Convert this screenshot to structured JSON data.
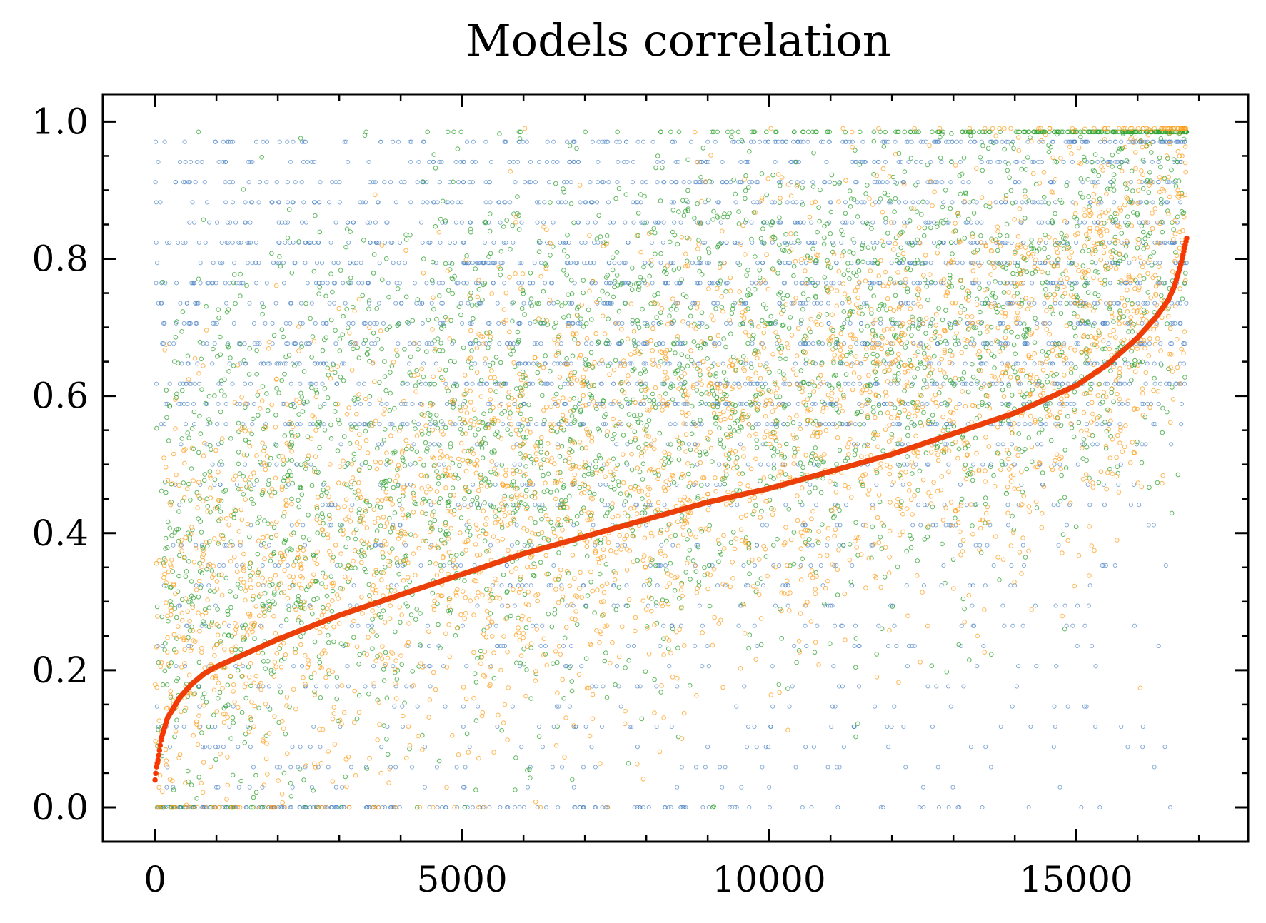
{
  "chart_data": {
    "type": "scatter",
    "title": "Models correlation",
    "xlabel": "",
    "ylabel": "",
    "xlim": [
      -850,
      17800
    ],
    "ylim": [
      -0.05,
      1.04
    ],
    "x_ticks": [
      0,
      5000,
      10000,
      15000
    ],
    "x_tick_labels": [
      "0",
      "5000",
      "10000",
      "15000"
    ],
    "y_ticks": [
      0.0,
      0.2,
      0.4,
      0.6,
      0.8,
      1.0
    ],
    "y_tick_labels": [
      "0.0",
      "0.2",
      "0.4",
      "0.6",
      "0.8",
      "1.0"
    ],
    "x_minor_step": 1000,
    "y_minor_step": 0.05,
    "grid": false,
    "legend": "none",
    "n_points": 16800,
    "series": [
      {
        "color": "#4f86c6",
        "marker": "hollow-circle",
        "description_points": [
          [
            0,
            0.05
          ],
          [
            200,
            0.01
          ],
          [
            500,
            0.94
          ],
          [
            1500,
            0.9
          ],
          [
            3000,
            0.85
          ],
          [
            5000,
            0.6
          ],
          [
            5000,
            0.1
          ],
          [
            7000,
            0.95
          ],
          [
            8000,
            0.3
          ],
          [
            10000,
            0.02
          ],
          [
            11000,
            0.7
          ],
          [
            12000,
            0.25
          ],
          [
            14000,
            0.1
          ],
          [
            15000,
            0.5
          ],
          [
            16500,
            0.9
          ],
          [
            16700,
            0.02
          ]
        ]
      },
      {
        "color": "#2ca02c",
        "marker": "hollow-circle",
        "description_points": [
          [
            0,
            0.3
          ],
          [
            500,
            0.55
          ],
          [
            1000,
            0.8
          ],
          [
            2000,
            0.5
          ],
          [
            4000,
            0.75
          ],
          [
            6000,
            0.65
          ],
          [
            8000,
            0.85
          ],
          [
            10000,
            0.6
          ],
          [
            12000,
            0.9
          ],
          [
            14000,
            0.7
          ],
          [
            16000,
            0.95
          ],
          [
            16800,
            0.85
          ]
        ]
      },
      {
        "color": "#ff9f1c",
        "marker": "hollow-circle",
        "description_points": [
          [
            0,
            0.05
          ],
          [
            500,
            0.15
          ],
          [
            1000,
            0.2
          ],
          [
            2000,
            0.4
          ],
          [
            4000,
            0.35
          ],
          [
            6000,
            0.55
          ],
          [
            8000,
            0.45
          ],
          [
            10000,
            0.6
          ],
          [
            12000,
            0.65
          ],
          [
            14000,
            0.75
          ],
          [
            16000,
            0.85
          ],
          [
            16800,
            0.95
          ]
        ]
      },
      {
        "color": "#ff3300",
        "marker": "filled-circle",
        "x": [
          0,
          25,
          50,
          100,
          200,
          400,
          600,
          800,
          1000,
          1500,
          2000,
          3000,
          4000,
          5000,
          6000,
          7000,
          8000,
          9000,
          10000,
          11000,
          12000,
          13000,
          14000,
          15000,
          15500,
          16000,
          16300,
          16500,
          16600,
          16700,
          16750,
          16800
        ],
        "y": [
          0.04,
          0.06,
          0.07,
          0.1,
          0.13,
          0.16,
          0.18,
          0.195,
          0.205,
          0.225,
          0.245,
          0.28,
          0.31,
          0.34,
          0.37,
          0.395,
          0.42,
          0.445,
          0.465,
          0.49,
          0.515,
          0.545,
          0.575,
          0.615,
          0.645,
          0.685,
          0.715,
          0.74,
          0.76,
          0.79,
          0.81,
          0.83
        ]
      }
    ]
  }
}
